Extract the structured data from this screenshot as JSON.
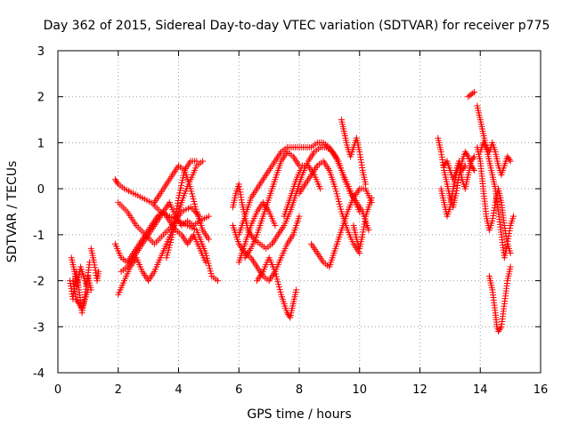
{
  "chart_data": {
    "type": "scatter",
    "title": "Day 362 of 2015, Sidereal Day-to-day VTEC variation (SDTVAR) for receiver p775",
    "xlabel": "GPS time / hours",
    "ylabel": "SDTVAR / TECUs",
    "xlim": [
      0,
      16
    ],
    "ylim": [
      -4,
      3
    ],
    "xticks": [
      0,
      2,
      4,
      6,
      8,
      10,
      12,
      14,
      16
    ],
    "yticks": [
      -4,
      -3,
      -2,
      -1,
      0,
      1,
      2,
      3
    ],
    "grid": true,
    "marker": "+",
    "color": "#ff0000",
    "tracks": [
      [
        [
          0.4,
          -2.0
        ],
        [
          0.5,
          -2.4
        ],
        [
          0.6,
          -1.8
        ],
        [
          0.7,
          -2.2
        ],
        [
          0.8,
          -2.7
        ],
        [
          0.9,
          -2.3
        ],
        [
          1.0,
          -1.9
        ],
        [
          1.1,
          -2.2
        ]
      ],
      [
        [
          0.45,
          -1.5
        ],
        [
          0.55,
          -1.8
        ],
        [
          0.65,
          -2.1
        ],
        [
          0.75,
          -1.7
        ],
        [
          0.85,
          -1.9
        ],
        [
          0.95,
          -2.1
        ],
        [
          1.05,
          -1.6
        ]
      ],
      [
        [
          0.5,
          -2.0
        ],
        [
          0.6,
          -2.4
        ],
        [
          0.7,
          -2.5
        ],
        [
          0.8,
          -2.6
        ],
        [
          0.9,
          -2.4
        ],
        [
          1.0,
          -2.2
        ]
      ],
      [
        [
          1.1,
          -1.3
        ],
        [
          1.2,
          -1.6
        ],
        [
          1.3,
          -2.0
        ],
        [
          1.35,
          -1.8
        ]
      ],
      [
        [
          1.9,
          0.2
        ],
        [
          2.0,
          0.1
        ],
        [
          2.2,
          0.0
        ],
        [
          2.5,
          -0.1
        ],
        [
          2.8,
          -0.2
        ],
        [
          3.1,
          -0.3
        ],
        [
          3.4,
          -0.5
        ],
        [
          3.7,
          -0.6
        ],
        [
          4.0,
          -0.7
        ],
        [
          4.3,
          -0.8
        ],
        [
          4.6,
          -0.9
        ],
        [
          4.9,
          -1.4
        ],
        [
          5.1,
          -1.9
        ],
        [
          5.3,
          -2.0
        ]
      ],
      [
        [
          1.9,
          -1.2
        ],
        [
          2.1,
          -1.5
        ],
        [
          2.3,
          -1.6
        ],
        [
          2.5,
          -1.4
        ],
        [
          2.7,
          -1.2
        ],
        [
          2.9,
          -1.0
        ],
        [
          3.1,
          -0.8
        ],
        [
          3.3,
          -0.6
        ],
        [
          3.5,
          -0.5
        ],
        [
          3.7,
          -0.7
        ],
        [
          3.9,
          -0.9
        ],
        [
          4.1,
          -1.0
        ],
        [
          4.3,
          -1.2
        ],
        [
          4.5,
          -1.0
        ],
        [
          4.7,
          -1.3
        ],
        [
          4.9,
          -1.6
        ]
      ],
      [
        [
          2.1,
          -1.8
        ],
        [
          2.3,
          -1.7
        ],
        [
          2.5,
          -1.5
        ],
        [
          2.7,
          -1.3
        ],
        [
          2.9,
          -1.1
        ],
        [
          3.1,
          -0.9
        ],
        [
          3.3,
          -0.7
        ],
        [
          3.5,
          -0.5
        ],
        [
          3.7,
          -0.3
        ],
        [
          3.9,
          -0.6
        ],
        [
          4.1,
          -0.8
        ],
        [
          4.3,
          -0.7
        ],
        [
          4.5,
          -0.8
        ],
        [
          4.7,
          -0.7
        ],
        [
          5.0,
          -0.6
        ]
      ],
      [
        [
          2.0,
          -2.3
        ],
        [
          2.2,
          -2.0
        ],
        [
          2.4,
          -1.7
        ],
        [
          2.6,
          -1.5
        ],
        [
          2.8,
          -1.8
        ],
        [
          3.0,
          -2.0
        ],
        [
          3.2,
          -1.8
        ],
        [
          3.4,
          -1.5
        ],
        [
          3.6,
          -1.2
        ],
        [
          3.8,
          -0.9
        ],
        [
          4.0,
          -0.5
        ],
        [
          4.2,
          -0.1
        ],
        [
          4.4,
          0.2
        ],
        [
          4.6,
          0.5
        ],
        [
          4.8,
          0.6
        ]
      ],
      [
        [
          3.2,
          -0.3
        ],
        [
          3.4,
          -0.1
        ],
        [
          3.6,
          0.1
        ],
        [
          3.8,
          0.3
        ],
        [
          4.0,
          0.5
        ],
        [
          4.2,
          0.4
        ],
        [
          4.4,
          0.0
        ],
        [
          4.6,
          -0.5
        ],
        [
          4.8,
          -0.9
        ],
        [
          5.0,
          -1.1
        ]
      ],
      [
        [
          2.0,
          -0.3
        ],
        [
          2.3,
          -0.5
        ],
        [
          2.6,
          -0.8
        ],
        [
          2.9,
          -1.0
        ],
        [
          3.2,
          -1.2
        ],
        [
          3.5,
          -1.0
        ],
        [
          3.8,
          -0.8
        ],
        [
          4.1,
          -0.5
        ],
        [
          4.4,
          -0.4
        ],
        [
          4.7,
          -0.6
        ]
      ],
      [
        [
          3.6,
          -1.5
        ],
        [
          3.8,
          -1.0
        ],
        [
          4.0,
          -0.2
        ],
        [
          4.2,
          0.4
        ],
        [
          4.4,
          0.6
        ],
        [
          4.6,
          0.6
        ]
      ],
      [
        [
          5.8,
          -0.4
        ],
        [
          5.9,
          -0.1
        ],
        [
          6.0,
          0.1
        ],
        [
          6.1,
          -0.3
        ],
        [
          6.2,
          -0.6
        ],
        [
          6.3,
          -0.9
        ],
        [
          6.5,
          -1.1
        ],
        [
          6.7,
          -1.2
        ],
        [
          6.9,
          -1.3
        ],
        [
          7.1,
          -1.2
        ],
        [
          7.3,
          -1.0
        ],
        [
          7.5,
          -0.8
        ],
        [
          7.7,
          -0.5
        ],
        [
          7.9,
          -0.1
        ],
        [
          8.1,
          0.3
        ],
        [
          8.3,
          0.6
        ],
        [
          8.5,
          0.8
        ],
        [
          8.7,
          0.9
        ],
        [
          8.9,
          0.9
        ],
        [
          9.1,
          0.8
        ],
        [
          9.3,
          0.6
        ],
        [
          9.5,
          0.2
        ],
        [
          9.7,
          -0.1
        ],
        [
          9.9,
          -0.3
        ],
        [
          10.1,
          -0.5
        ],
        [
          10.3,
          -0.9
        ]
      ],
      [
        [
          5.8,
          -0.8
        ],
        [
          6.0,
          -1.2
        ],
        [
          6.2,
          -1.4
        ],
        [
          6.4,
          -1.5
        ],
        [
          6.6,
          -1.7
        ],
        [
          6.8,
          -1.9
        ],
        [
          7.0,
          -2.0
        ],
        [
          7.2,
          -1.8
        ],
        [
          7.4,
          -1.5
        ],
        [
          7.6,
          -1.2
        ],
        [
          7.8,
          -1.0
        ],
        [
          8.0,
          -0.6
        ]
      ],
      [
        [
          6.0,
          -1.0
        ],
        [
          6.2,
          -0.6
        ],
        [
          6.4,
          -0.2
        ],
        [
          6.6,
          0.0
        ],
        [
          6.8,
          0.2
        ],
        [
          7.0,
          0.4
        ],
        [
          7.2,
          0.6
        ],
        [
          7.4,
          0.8
        ],
        [
          7.6,
          0.9
        ],
        [
          7.8,
          0.9
        ],
        [
          8.0,
          0.9
        ],
        [
          8.2,
          0.9
        ],
        [
          8.4,
          0.9
        ],
        [
          8.6,
          1.0
        ],
        [
          8.8,
          1.0
        ],
        [
          9.0,
          0.9
        ],
        [
          9.2,
          0.7
        ],
        [
          9.4,
          0.4
        ],
        [
          9.6,
          0.1
        ],
        [
          9.8,
          -0.2
        ],
        [
          10.0,
          -0.5
        ]
      ],
      [
        [
          6.2,
          -1.5
        ],
        [
          6.4,
          -1.3
        ],
        [
          6.6,
          -1.0
        ],
        [
          6.8,
          -0.6
        ],
        [
          7.0,
          -0.2
        ],
        [
          7.2,
          0.2
        ],
        [
          7.4,
          0.6
        ],
        [
          7.6,
          0.8
        ],
        [
          7.8,
          0.7
        ],
        [
          8.0,
          0.5
        ]
      ],
      [
        [
          6.6,
          -2.0
        ],
        [
          6.8,
          -1.8
        ],
        [
          7.0,
          -1.5
        ],
        [
          7.2,
          -1.8
        ],
        [
          7.4,
          -2.3
        ],
        [
          7.6,
          -2.7
        ],
        [
          7.7,
          -2.8
        ],
        [
          7.8,
          -2.5
        ],
        [
          7.9,
          -2.2
        ]
      ],
      [
        [
          6.0,
          -1.6
        ],
        [
          6.2,
          -1.2
        ],
        [
          6.4,
          -0.8
        ],
        [
          6.6,
          -0.5
        ],
        [
          6.8,
          -0.3
        ],
        [
          7.0,
          -0.5
        ],
        [
          7.2,
          -0.8
        ]
      ],
      [
        [
          7.5,
          -0.6
        ],
        [
          7.7,
          -0.2
        ],
        [
          7.9,
          0.2
        ],
        [
          8.1,
          0.5
        ],
        [
          8.3,
          0.5
        ],
        [
          8.5,
          0.3
        ],
        [
          8.7,
          0.0
        ]
      ],
      [
        [
          8.0,
          -0.1
        ],
        [
          8.2,
          0.1
        ],
        [
          8.4,
          0.3
        ],
        [
          8.6,
          0.5
        ],
        [
          8.8,
          0.6
        ],
        [
          9.0,
          0.4
        ],
        [
          9.2,
          0.0
        ],
        [
          9.4,
          -0.5
        ],
        [
          9.6,
          -0.9
        ],
        [
          9.8,
          -1.2
        ],
        [
          10.0,
          -1.4
        ]
      ],
      [
        [
          8.4,
          -1.2
        ],
        [
          8.6,
          -1.4
        ],
        [
          8.8,
          -1.6
        ],
        [
          9.0,
          -1.7
        ],
        [
          9.2,
          -1.3
        ],
        [
          9.4,
          -0.9
        ],
        [
          9.6,
          -0.5
        ],
        [
          9.8,
          -0.2
        ],
        [
          10.0,
          0.0
        ],
        [
          10.2,
          0.0
        ],
        [
          10.4,
          -0.3
        ]
      ],
      [
        [
          9.4,
          1.5
        ],
        [
          9.5,
          1.2
        ],
        [
          9.6,
          0.9
        ],
        [
          9.7,
          0.7
        ],
        [
          9.8,
          0.9
        ],
        [
          9.9,
          1.1
        ],
        [
          10.0,
          0.8
        ],
        [
          10.1,
          0.4
        ],
        [
          10.2,
          0.1
        ]
      ],
      [
        [
          9.8,
          -0.8
        ],
        [
          9.9,
          -1.1
        ],
        [
          10.0,
          -1.3
        ],
        [
          10.1,
          -1.0
        ],
        [
          10.2,
          -0.6
        ],
        [
          10.3,
          -0.4
        ],
        [
          10.4,
          -0.2
        ]
      ],
      [
        [
          12.6,
          1.1
        ],
        [
          12.7,
          0.8
        ],
        [
          12.8,
          0.4
        ],
        [
          12.9,
          0.1
        ],
        [
          13.0,
          -0.2
        ],
        [
          13.1,
          -0.4
        ],
        [
          13.2,
          -0.1
        ],
        [
          13.3,
          0.3
        ],
        [
          13.4,
          0.6
        ],
        [
          13.5,
          0.8
        ],
        [
          13.6,
          0.7
        ],
        [
          13.7,
          0.5
        ],
        [
          13.8,
          0.4
        ]
      ],
      [
        [
          12.7,
          0.0
        ],
        [
          12.8,
          -0.3
        ],
        [
          12.9,
          -0.6
        ],
        [
          13.0,
          -0.4
        ],
        [
          13.1,
          0.0
        ],
        [
          13.2,
          0.3
        ],
        [
          13.3,
          0.5
        ],
        [
          13.4,
          0.2
        ],
        [
          13.5,
          0.0
        ],
        [
          13.6,
          0.3
        ],
        [
          13.7,
          0.6
        ],
        [
          13.8,
          0.7
        ]
      ],
      [
        [
          12.8,
          0.5
        ],
        [
          12.9,
          0.6
        ],
        [
          13.0,
          0.4
        ],
        [
          13.1,
          0.2
        ],
        [
          13.2,
          0.4
        ],
        [
          13.3,
          0.6
        ],
        [
          13.4,
          0.4
        ],
        [
          13.5,
          0.5
        ]
      ],
      [
        [
          13.6,
          2.0
        ],
        [
          13.7,
          2.05
        ],
        [
          13.8,
          2.1
        ]
      ],
      [
        [
          13.9,
          1.8
        ],
        [
          14.0,
          1.5
        ],
        [
          14.1,
          1.2
        ],
        [
          14.2,
          0.9
        ],
        [
          14.3,
          0.8
        ],
        [
          14.4,
          1.0
        ],
        [
          14.5,
          0.8
        ],
        [
          14.6,
          0.5
        ],
        [
          14.7,
          0.3
        ],
        [
          14.8,
          0.5
        ],
        [
          14.9,
          0.7
        ],
        [
          15.0,
          0.6
        ]
      ],
      [
        [
          13.9,
          0.9
        ],
        [
          14.0,
          0.6
        ],
        [
          14.1,
          0.0
        ],
        [
          14.2,
          -0.6
        ],
        [
          14.3,
          -0.9
        ],
        [
          14.4,
          -0.7
        ],
        [
          14.5,
          -0.3
        ],
        [
          14.6,
          0.0
        ],
        [
          14.7,
          -0.3
        ],
        [
          14.8,
          -0.8
        ],
        [
          14.9,
          -1.2
        ],
        [
          15.0,
          -1.4
        ]
      ],
      [
        [
          14.0,
          0.8
        ],
        [
          14.1,
          1.0
        ],
        [
          14.2,
          0.9
        ],
        [
          14.3,
          0.6
        ],
        [
          14.4,
          0.3
        ],
        [
          14.5,
          0.0
        ],
        [
          14.6,
          -0.5
        ],
        [
          14.7,
          -1.0
        ],
        [
          14.8,
          -1.5
        ],
        [
          14.9,
          -1.2
        ],
        [
          15.0,
          -0.8
        ],
        [
          15.1,
          -0.6
        ]
      ],
      [
        [
          14.3,
          -1.9
        ],
        [
          14.4,
          -2.2
        ],
        [
          14.5,
          -2.7
        ],
        [
          14.55,
          -3.0
        ],
        [
          14.6,
          -3.1
        ],
        [
          14.7,
          -3.0
        ],
        [
          14.8,
          -2.5
        ],
        [
          14.9,
          -2.0
        ],
        [
          15.0,
          -1.7
        ]
      ]
    ]
  }
}
